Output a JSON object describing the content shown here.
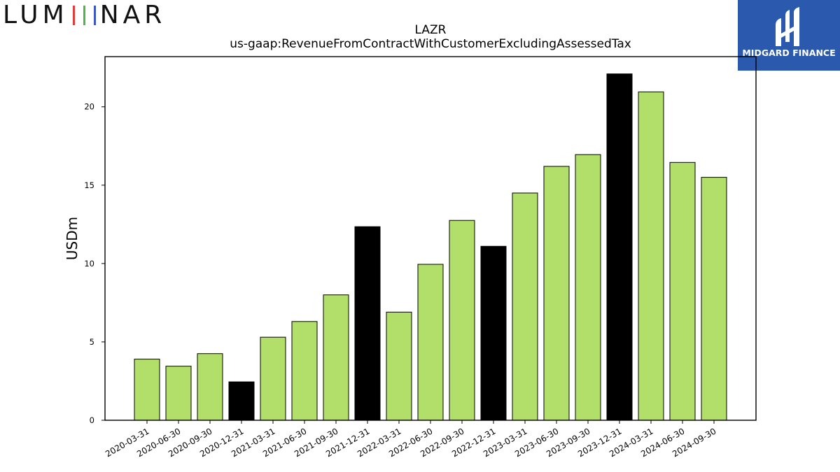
{
  "branding": {
    "left_logo_text": "LUMINAR",
    "right_logo_text": "MIDGARD FINANCE",
    "right_logo_bg": "#2b59ae"
  },
  "chart_data": {
    "type": "bar",
    "title": "LAZR",
    "subtitle": "us-gaap:RevenueFromContractWithCustomerExcludingAssessedTax",
    "xlabel": "",
    "ylabel": "USDm",
    "ylim": [
      0,
      23.2
    ],
    "yticks": [
      0,
      5,
      10,
      15,
      20
    ],
    "categories": [
      "2020-03-31",
      "2020-06-30",
      "2020-09-30",
      "2020-12-31",
      "2021-03-31",
      "2021-06-30",
      "2021-09-30",
      "2021-12-31",
      "2022-03-31",
      "2022-06-30",
      "2022-09-30",
      "2022-12-31",
      "2023-03-31",
      "2023-06-30",
      "2023-09-30",
      "2023-12-31",
      "2024-03-31",
      "2024-06-30",
      "2024-09-30"
    ],
    "values": [
      3.9,
      3.45,
      4.25,
      2.45,
      5.3,
      6.3,
      8.0,
      12.35,
      6.9,
      9.95,
      12.75,
      11.1,
      14.5,
      16.2,
      16.95,
      22.1,
      20.95,
      16.45,
      15.5
    ],
    "colors": {
      "quarter": "#b2df6a",
      "year_end": "#000000"
    },
    "year_end_categories": [
      "2020-12-31",
      "2021-12-31",
      "2022-12-31",
      "2023-12-31"
    ],
    "grid": false
  }
}
